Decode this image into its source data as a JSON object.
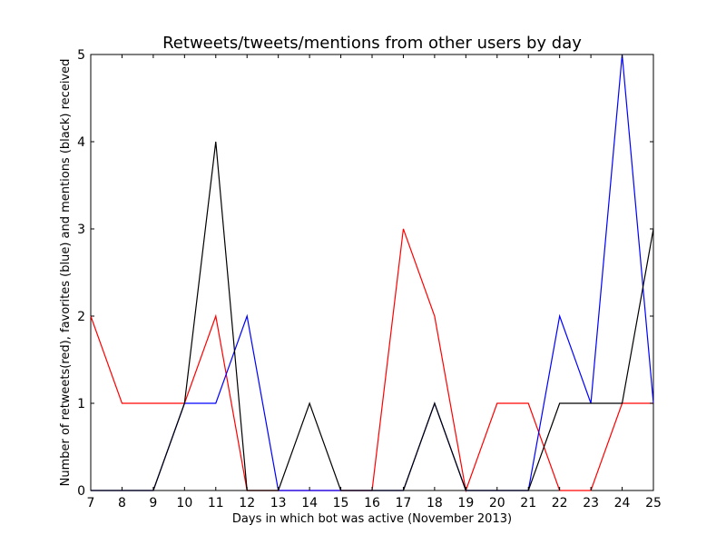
{
  "chart_data": {
    "type": "line",
    "title": "Retweets/tweets/mentions from other users by day",
    "xlabel": "Days in which bot was active (November 2013)",
    "ylabel": "Number of retweets(red), favorites (blue) and mentions (black) received",
    "x": [
      7,
      8,
      9,
      10,
      11,
      12,
      13,
      14,
      15,
      16,
      17,
      18,
      19,
      20,
      21,
      22,
      23,
      24,
      25
    ],
    "xlim": [
      7,
      25
    ],
    "ylim": [
      0,
      5
    ],
    "xticks": [
      "7",
      "8",
      "9",
      "10",
      "11",
      "12",
      "13",
      "14",
      "15",
      "16",
      "17",
      "18",
      "19",
      "20",
      "21",
      "22",
      "23",
      "24",
      "25"
    ],
    "yticks": [
      "0",
      "1",
      "2",
      "3",
      "4",
      "5"
    ],
    "grid": false,
    "series": [
      {
        "color": "#ff0000",
        "values": [
          2,
          1,
          1,
          1,
          2,
          0,
          0,
          0,
          0,
          0,
          3,
          2,
          0,
          1,
          1,
          0,
          0,
          1,
          1
        ]
      },
      {
        "color": "#0000ff",
        "values": [
          0,
          0,
          0,
          1,
          1,
          2,
          0,
          0,
          0,
          0,
          0,
          1,
          0,
          0,
          0,
          2,
          1,
          5,
          1
        ]
      },
      {
        "color": "#000000",
        "values": [
          0,
          0,
          0,
          1,
          4,
          0,
          0,
          1,
          0,
          0,
          0,
          1,
          0,
          0,
          0,
          1,
          1,
          1,
          3
        ]
      }
    ]
  }
}
